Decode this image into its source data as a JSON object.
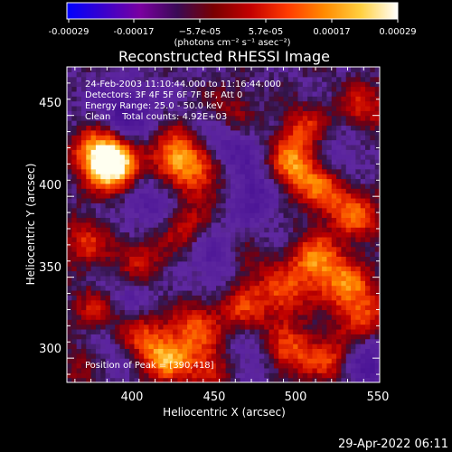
{
  "colorbar": {
    "tick_labels": [
      "-0.00029",
      "-0.00017",
      "−5.7e-05",
      "5.7e-05",
      "0.00017",
      "0.00029"
    ],
    "unit_label": "(photons cm⁻² s⁻¹ asec⁻²)",
    "colors": [
      "#0000ff",
      "#3a00cc",
      "#7a00a0",
      "#3a0a55",
      "#7a0000",
      "#c40000",
      "#ff3a00",
      "#ff8a00",
      "#ffd040",
      "#ffffff"
    ]
  },
  "annotations": {
    "time_range": "24-Feb-2003 11:10:44.000 to 11:16:44.000",
    "detectors": "Detectors: 3F 4F 5F 6F 7F 8F, Att 0",
    "energy_range": "Energy Range: 25.0 - 50.0 keV",
    "clean_counts": "Clean    Total counts: 4.92E+03",
    "peak_position": "Position of Peak = [390,418]"
  },
  "footer": {
    "timestamp": "29-Apr-2022 06:11"
  },
  "chart_data": {
    "type": "heatmap",
    "title": "Reconstructed RHESSI Image",
    "xlabel": "Heliocentric X (arcsec)",
    "ylabel": "Heliocentric Y (arcsec)",
    "xlim": [
      360,
      555
    ],
    "ylim": [
      285,
      480
    ],
    "x_ticks": [
      400,
      450,
      500,
      550
    ],
    "y_ticks": [
      300,
      350,
      400,
      450
    ],
    "value_range": [
      -0.00029,
      0.00029
    ],
    "peak": [
      390,
      418
    ],
    "grid": false,
    "legend": "colorbar-top",
    "hot_spots": [
      {
        "x": 390,
        "y": 418,
        "v": 1.0
      },
      {
        "x": 380,
        "y": 428,
        "v": 0.9
      },
      {
        "x": 428,
        "y": 426,
        "v": 0.85
      },
      {
        "x": 445,
        "y": 412,
        "v": 0.55
      },
      {
        "x": 500,
        "y": 418,
        "v": 0.8
      },
      {
        "x": 508,
        "y": 440,
        "v": 0.55
      },
      {
        "x": 372,
        "y": 372,
        "v": 0.45
      },
      {
        "x": 405,
        "y": 360,
        "v": 0.5
      },
      {
        "x": 432,
        "y": 382,
        "v": 0.45
      },
      {
        "x": 520,
        "y": 405,
        "v": 0.65
      },
      {
        "x": 540,
        "y": 388,
        "v": 0.6
      },
      {
        "x": 515,
        "y": 360,
        "v": 0.75
      },
      {
        "x": 535,
        "y": 345,
        "v": 0.65
      },
      {
        "x": 495,
        "y": 340,
        "v": 0.55
      },
      {
        "x": 470,
        "y": 330,
        "v": 0.5
      },
      {
        "x": 440,
        "y": 320,
        "v": 0.55
      },
      {
        "x": 422,
        "y": 300,
        "v": 0.75
      },
      {
        "x": 405,
        "y": 315,
        "v": 0.5
      },
      {
        "x": 378,
        "y": 330,
        "v": 0.45
      },
      {
        "x": 450,
        "y": 295,
        "v": 0.55
      },
      {
        "x": 498,
        "y": 305,
        "v": 0.6
      },
      {
        "x": 525,
        "y": 300,
        "v": 0.6
      },
      {
        "x": 545,
        "y": 325,
        "v": 0.55
      },
      {
        "x": 470,
        "y": 358,
        "v": 0.35
      },
      {
        "x": 370,
        "y": 295,
        "v": 0.4
      },
      {
        "x": 545,
        "y": 455,
        "v": 0.45
      },
      {
        "x": 462,
        "y": 452,
        "v": 0.4
      }
    ],
    "cold_spots": [
      {
        "x": 395,
        "y": 450,
        "v": -0.45
      },
      {
        "x": 458,
        "y": 435,
        "v": -0.35
      },
      {
        "x": 478,
        "y": 405,
        "v": -0.4
      },
      {
        "x": 412,
        "y": 395,
        "v": -0.35
      },
      {
        "x": 455,
        "y": 360,
        "v": -0.35
      },
      {
        "x": 398,
        "y": 340,
        "v": -0.3
      },
      {
        "x": 545,
        "y": 298,
        "v": -0.45
      },
      {
        "x": 525,
        "y": 425,
        "v": -0.3
      },
      {
        "x": 382,
        "y": 302,
        "v": -0.3
      },
      {
        "x": 470,
        "y": 300,
        "v": -0.3
      }
    ]
  }
}
